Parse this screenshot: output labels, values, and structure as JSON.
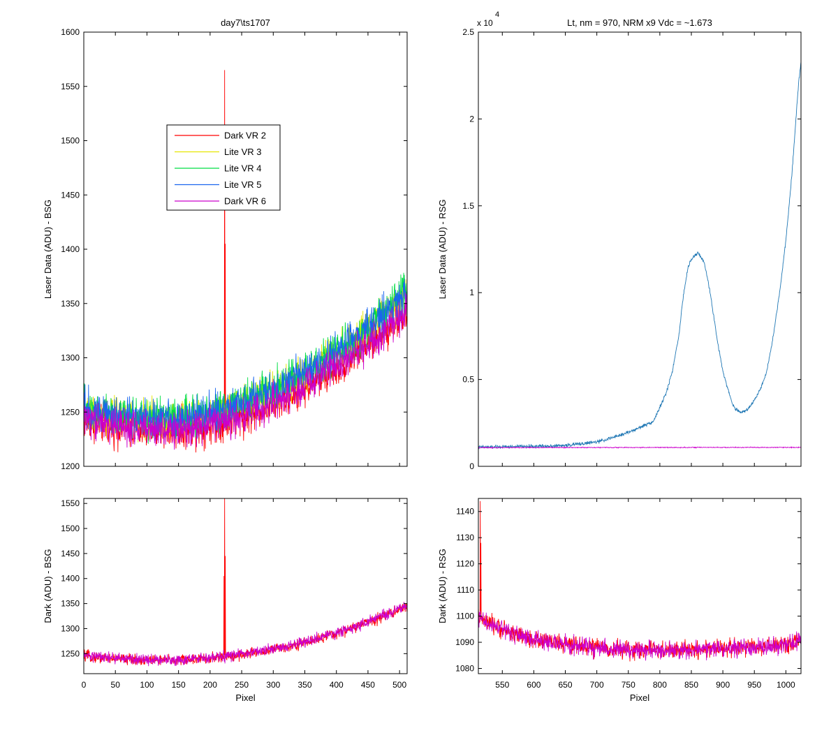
{
  "chart_data": [
    {
      "id": "top-left",
      "type": "line",
      "title": "day7\\ts1707",
      "xlabel": "",
      "ylabel": "Laser Data (ADU) - BSG",
      "xlim": [
        0,
        512
      ],
      "ylim": [
        1200,
        1600
      ],
      "xticks": [
        0,
        50,
        100,
        150,
        200,
        250,
        300,
        350,
        400,
        450,
        500
      ],
      "show_xtick_labels": false,
      "yticks": [
        1200,
        1250,
        1300,
        1350,
        1400,
        1450,
        1500,
        1550,
        1600
      ],
      "legend": {
        "placement": "upper-left-center"
      },
      "series": [
        {
          "name": "Dark VR 2",
          "color": "#ff0000",
          "baseline": {
            "x": [
              0,
              50,
              100,
              150,
              200,
              250,
              300,
              350,
              400,
              450,
              500,
              512
            ],
            "y": [
              1242,
              1236,
              1233,
              1233,
              1237,
              1245,
              1257,
              1272,
              1290,
              1312,
              1335,
              1340
            ]
          },
          "noise": 14,
          "spikes": [
            {
              "x": 223,
              "y": 1565
            },
            {
              "x": 224,
              "y": 1405
            }
          ]
        },
        {
          "name": "Lite VR 3",
          "color": "#e6e600",
          "baseline": {
            "x": [
              0,
              50,
              100,
              150,
              200,
              250,
              300,
              350,
              400,
              450,
              500,
              512
            ],
            "y": [
              1252,
              1246,
              1243,
              1243,
              1247,
              1256,
              1269,
              1285,
              1304,
              1326,
              1352,
              1358
            ]
          },
          "noise": 14
        },
        {
          "name": "Lite VR 4",
          "color": "#00dd44",
          "baseline": {
            "x": [
              0,
              50,
              100,
              150,
              200,
              250,
              300,
              350,
              400,
              450,
              500,
              512
            ],
            "y": [
              1254,
              1248,
              1245,
              1245,
              1249,
              1258,
              1271,
              1287,
              1306,
              1328,
              1355,
              1362
            ]
          },
          "noise": 15
        },
        {
          "name": "Lite VR 5",
          "color": "#1a66ee",
          "baseline": {
            "x": [
              0,
              50,
              100,
              150,
              200,
              250,
              300,
              350,
              400,
              450,
              500,
              512
            ],
            "y": [
              1253,
              1247,
              1244,
              1244,
              1248,
              1257,
              1270,
              1286,
              1305,
              1327,
              1353,
              1360
            ]
          },
          "noise": 14
        },
        {
          "name": "Dark VR 6",
          "color": "#cc00cc",
          "baseline": {
            "x": [
              0,
              50,
              100,
              150,
              200,
              250,
              300,
              350,
              400,
              450,
              500,
              512
            ],
            "y": [
              1243,
              1237,
              1234,
              1234,
              1238,
              1246,
              1258,
              1273,
              1291,
              1313,
              1336,
              1342
            ]
          },
          "noise": 14
        }
      ]
    },
    {
      "id": "top-right",
      "type": "line",
      "title": "Lt, nm = 970, NRM x9 Vdc = ~1.673",
      "xlabel": "",
      "ylabel": "Laser Data (ADU) - RSG",
      "exponent_label": "x 10",
      "exponent_power": "4",
      "xlim": [
        512,
        1024
      ],
      "ylim": [
        0,
        2.5
      ],
      "xticks": [
        550,
        600,
        650,
        700,
        750,
        800,
        850,
        900,
        950,
        1000
      ],
      "show_xtick_labels": false,
      "yticks": [
        0,
        0.5,
        1,
        1.5,
        2,
        2.5
      ],
      "ytick_labels": [
        "0",
        "0.5",
        "1",
        "1.5",
        "2",
        "2.5"
      ],
      "series": [
        {
          "name": "",
          "color": "#1f77b4",
          "baseline": {
            "x": [
              512,
              600,
              650,
              700,
              730,
              760,
              790,
              810,
              820,
              830,
              838,
              845,
              852,
              860,
              870,
              880,
              890,
              900,
              910,
              915,
              920,
              930,
              940,
              950,
              960,
              970,
              980,
              990,
              1000,
              1010,
              1015,
              1020,
              1024
            ],
            "y": [
              0.11,
              0.115,
              0.12,
              0.14,
              0.17,
              0.21,
              0.26,
              0.42,
              0.55,
              0.75,
              1.0,
              1.15,
              1.2,
              1.23,
              1.18,
              1.0,
              0.75,
              0.55,
              0.42,
              0.36,
              0.33,
              0.31,
              0.33,
              0.38,
              0.45,
              0.55,
              0.75,
              1.0,
              1.3,
              1.7,
              1.95,
              2.2,
              2.33
            ]
          },
          "noise": 0.008
        },
        {
          "name": "",
          "color": "#cc00cc",
          "baseline": {
            "x": [
              512,
              1024
            ],
            "y": [
              0.108,
              0.109
            ]
          },
          "noise": 0.002
        }
      ]
    },
    {
      "id": "bottom-left",
      "type": "line",
      "title": "",
      "xlabel": "Pixel",
      "ylabel": "Dark (ADU) - BSG",
      "xlim": [
        0,
        512
      ],
      "ylim": [
        1210,
        1560
      ],
      "xticks": [
        0,
        50,
        100,
        150,
        200,
        250,
        300,
        350,
        400,
        450,
        500
      ],
      "show_xtick_labels": true,
      "yticks": [
        1250,
        1300,
        1350,
        1400,
        1450,
        1500,
        1550
      ],
      "series": [
        {
          "name": "Dark VR 2",
          "color": "#ff0000",
          "baseline": {
            "x": [
              0,
              50,
              100,
              150,
              200,
              250,
              300,
              350,
              400,
              450,
              500,
              512
            ],
            "y": [
              1245,
              1240,
              1237,
              1237,
              1240,
              1248,
              1258,
              1272,
              1290,
              1313,
              1338,
              1345
            ]
          },
          "noise": 9,
          "spikes": [
            {
              "x": 223,
              "y": 1560
            },
            {
              "x": 224,
              "y": 1445
            },
            {
              "x": 222,
              "y": 1405
            }
          ]
        },
        {
          "name": "Dark VR 6",
          "color": "#cc00cc",
          "baseline": {
            "x": [
              0,
              50,
              100,
              150,
              200,
              250,
              300,
              350,
              400,
              450,
              500,
              512
            ],
            "y": [
              1246,
              1241,
              1238,
              1238,
              1241,
              1249,
              1259,
              1273,
              1291,
              1314,
              1339,
              1346
            ]
          },
          "noise": 9
        }
      ]
    },
    {
      "id": "bottom-right",
      "type": "line",
      "title": "",
      "xlabel": "Pixel",
      "ylabel": "Dark (ADU) - RSG",
      "xlim": [
        512,
        1024
      ],
      "ylim": [
        1078,
        1145
      ],
      "xticks": [
        550,
        600,
        650,
        700,
        750,
        800,
        850,
        900,
        950,
        1000
      ],
      "show_xtick_labels": true,
      "yticks": [
        1080,
        1090,
        1100,
        1110,
        1120,
        1130,
        1140
      ],
      "series": [
        {
          "name": "Dark VR 2",
          "color": "#ff0000",
          "baseline": {
            "x": [
              512,
              520,
              540,
              560,
              600,
              650,
              700,
              750,
              800,
              850,
              900,
              950,
              1000,
              1024
            ],
            "y": [
              1100,
              1098,
              1096,
              1094,
              1091,
              1089,
              1088,
              1087,
              1087,
              1087,
              1088,
              1088,
              1089,
              1091
            ]
          },
          "noise": 2.8,
          "spikes": [
            {
              "x": 515,
              "y": 1144
            },
            {
              "x": 516,
              "y": 1128
            }
          ]
        },
        {
          "name": "Dark VR 6",
          "color": "#cc00cc",
          "baseline": {
            "x": [
              512,
              520,
              540,
              560,
              600,
              650,
              700,
              750,
              800,
              850,
              900,
              950,
              1000,
              1024
            ],
            "y": [
              1100,
              1098,
              1096,
              1094,
              1091,
              1089,
              1088,
              1087,
              1087,
              1087,
              1088,
              1088,
              1089,
              1091
            ]
          },
          "noise": 2.8
        }
      ]
    }
  ]
}
